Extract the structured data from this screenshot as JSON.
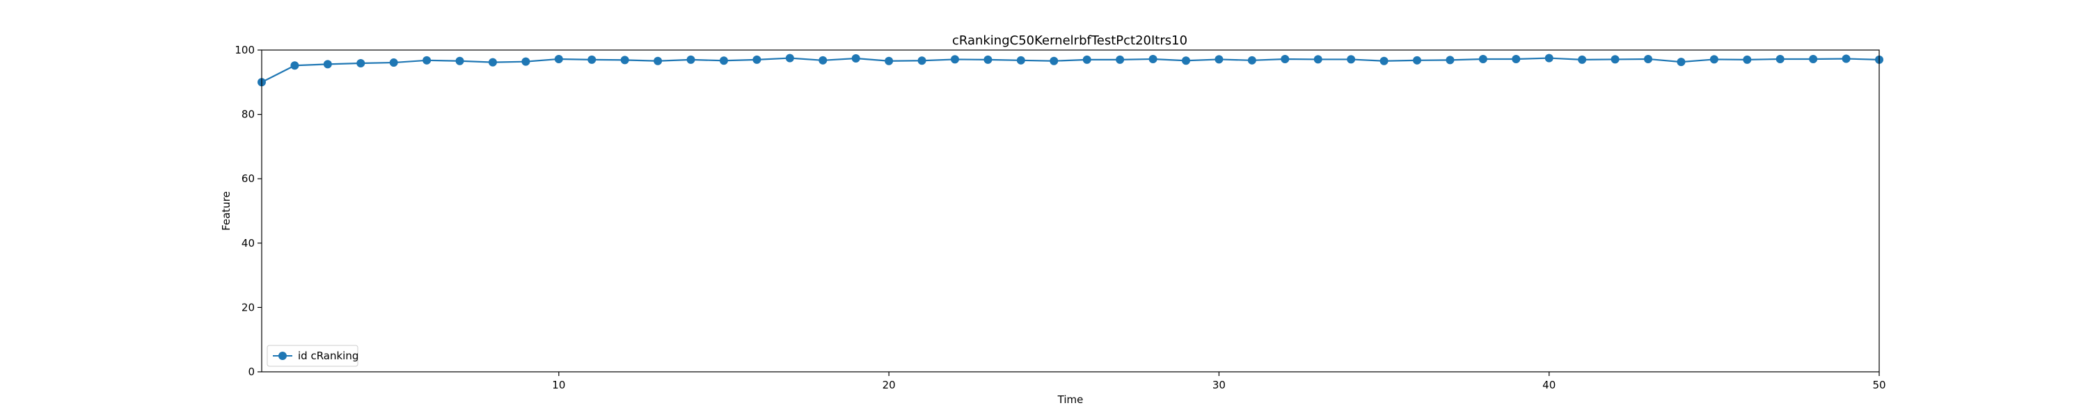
{
  "chart_data": {
    "type": "line",
    "title": "cRankingC50KernelrbfTestPct20Itrs10",
    "xlabel": "Time",
    "ylabel": "Feature",
    "xlim": [
      1,
      50
    ],
    "ylim": [
      0,
      100
    ],
    "xticks": [
      10,
      20,
      30,
      40,
      50
    ],
    "yticks": [
      0,
      20,
      40,
      60,
      80,
      100
    ],
    "grid": false,
    "legend_position": "lower-left",
    "series": [
      {
        "name": "id cRanking",
        "color": "#1f77b4",
        "marker": "circle",
        "x": [
          1,
          2,
          3,
          4,
          5,
          6,
          7,
          8,
          9,
          10,
          11,
          12,
          13,
          14,
          15,
          16,
          17,
          18,
          19,
          20,
          21,
          22,
          23,
          24,
          25,
          26,
          27,
          28,
          29,
          30,
          31,
          32,
          33,
          34,
          35,
          36,
          37,
          38,
          39,
          40,
          41,
          42,
          43,
          44,
          45,
          46,
          47,
          48,
          49,
          50
        ],
        "y": [
          90.0,
          95.2,
          95.6,
          95.9,
          96.1,
          96.8,
          96.6,
          96.2,
          96.4,
          97.2,
          97.0,
          96.9,
          96.6,
          97.0,
          96.7,
          97.0,
          97.5,
          96.8,
          97.4,
          96.6,
          96.7,
          97.1,
          97.0,
          96.8,
          96.6,
          97.0,
          97.0,
          97.2,
          96.7,
          97.1,
          96.8,
          97.2,
          97.1,
          97.1,
          96.6,
          96.8,
          96.9,
          97.2,
          97.2,
          97.5,
          97.0,
          97.1,
          97.2,
          96.3,
          97.1,
          97.0,
          97.2,
          97.2,
          97.3,
          97.0
        ]
      }
    ]
  }
}
